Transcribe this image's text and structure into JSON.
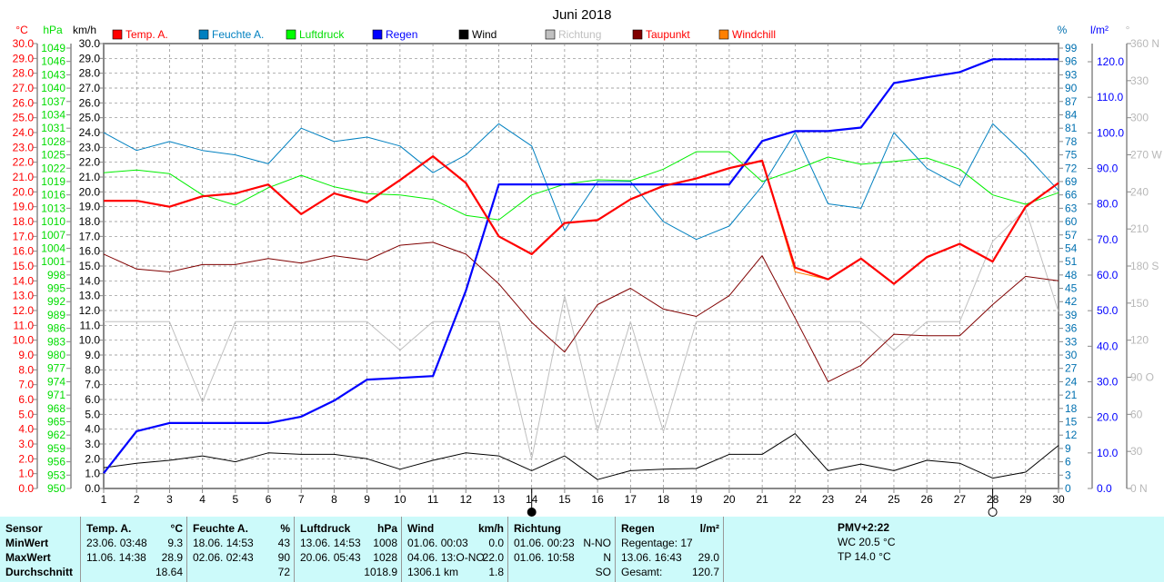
{
  "chart_data": {
    "type": "line",
    "title": "Juni 2018",
    "x": [
      1,
      2,
      3,
      4,
      5,
      6,
      7,
      8,
      9,
      10,
      11,
      12,
      13,
      14,
      15,
      16,
      17,
      18,
      19,
      20,
      21,
      22,
      23,
      24,
      25,
      26,
      27,
      28,
      29,
      30
    ],
    "axes": {
      "temp": {
        "unit": "°C",
        "min": 0,
        "max": 30,
        "step": 1,
        "color": "#ff0000"
      },
      "pressure": {
        "unit": "hPa",
        "min": 950,
        "max": 1049,
        "step": 3,
        "color": "#00ee00"
      },
      "wind": {
        "unit": "km/h",
        "min": 0,
        "max": 30,
        "step": 1,
        "color": "#000000"
      },
      "humidity": {
        "unit": "%",
        "min": 0,
        "max": 99,
        "step": 3,
        "color": "#0070b0"
      },
      "rain": {
        "unit": "l/m²",
        "min": 0,
        "max": 120,
        "step": 10,
        "color": "#0000ff"
      },
      "direction": {
        "unit": "°",
        "min": 0,
        "max": 360,
        "step": 30,
        "color": "#b0b0b0",
        "labels": {
          "0": "0 N",
          "90": "90 O",
          "180": "180 S",
          "270": "270 W",
          "360": "360 N"
        }
      }
    },
    "grid": true,
    "legend_position": "top",
    "series": [
      {
        "name": "Temp. A.",
        "axis": "temp",
        "color": "#ff0000",
        "width": 2.2,
        "values": [
          19.4,
          19.4,
          19.0,
          19.7,
          19.9,
          20.5,
          18.5,
          19.9,
          19.3,
          20.8,
          22.4,
          20.6,
          17.0,
          15.8,
          17.9,
          18.1,
          19.5,
          20.4,
          20.9,
          21.6,
          22.1,
          14.9,
          14.1,
          15.5,
          13.8,
          15.6,
          16.5,
          15.3,
          19.0,
          20.6
        ]
      },
      {
        "name": "Feuchte A.",
        "axis": "humidity",
        "color": "#0080c0",
        "width": 1,
        "values": [
          80,
          76,
          78,
          76,
          75,
          73,
          81,
          78,
          79,
          77,
          71,
          75,
          82,
          77,
          58,
          69,
          69,
          60,
          56,
          59,
          68,
          80,
          64,
          63,
          80,
          72,
          68,
          82,
          75,
          67
        ]
      },
      {
        "name": "Luftdruck",
        "axis": "pressure",
        "color": "#00ee00",
        "width": 1,
        "values": [
          1021.0,
          1021.6,
          1020.8,
          1016.0,
          1013.7,
          1017.6,
          1020.4,
          1017.8,
          1016.3,
          1016.0,
          1015.0,
          1011.4,
          1010.4,
          1016.0,
          1018.4,
          1019.4,
          1019.2,
          1021.8,
          1025.7,
          1025.7,
          1019.0,
          1021.6,
          1024.5,
          1022.9,
          1023.5,
          1024.3,
          1021.8,
          1016.0,
          1013.9,
          1016.5
        ]
      },
      {
        "name": "Regen",
        "axis": "rain",
        "color": "#0000ff",
        "width": 2.2,
        "values": [
          4.3,
          16.1,
          18.4,
          18.4,
          18.4,
          18.4,
          20.2,
          24.7,
          30.6,
          31.1,
          31.6,
          55.6,
          85.5,
          85.5,
          85.5,
          85.5,
          85.5,
          85.5,
          85.5,
          85.5,
          97.7,
          100.5,
          100.5,
          101.5,
          114.0,
          115.6,
          117.1,
          120.7,
          120.7,
          120.7
        ]
      },
      {
        "name": "Wind",
        "axis": "wind",
        "color": "#000000",
        "width": 1,
        "values": [
          1.4,
          1.7,
          1.9,
          2.2,
          1.8,
          2.4,
          2.3,
          2.3,
          2.0,
          1.3,
          1.9,
          2.4,
          2.2,
          1.2,
          2.2,
          0.6,
          1.2,
          1.3,
          1.35,
          2.3,
          2.3,
          3.7,
          1.2,
          1.65,
          1.2,
          1.9,
          1.7,
          0.7,
          1.1,
          2.9
        ]
      },
      {
        "name": "Richtung",
        "axis": "direction",
        "color": "#c0c0c0",
        "width": 1,
        "values": [
          135,
          135,
          135,
          70,
          135,
          135,
          135,
          135,
          135,
          112,
          135,
          135,
          135,
          24,
          156,
          46,
          135,
          46,
          135,
          135,
          135,
          135,
          135,
          135,
          112,
          135,
          135,
          200,
          226,
          143
        ]
      },
      {
        "name": "Taupunkt",
        "axis": "temp",
        "color": "#800000",
        "width": 1,
        "values": [
          15.8,
          14.8,
          14.6,
          15.1,
          15.1,
          15.5,
          15.2,
          15.7,
          15.4,
          16.4,
          16.6,
          15.8,
          13.8,
          11.2,
          9.2,
          12.4,
          13.5,
          12.1,
          11.6,
          13.0,
          15.7,
          11.5,
          7.2,
          8.3,
          10.4,
          10.3,
          10.3,
          12.4,
          14.3,
          14.0
        ]
      },
      {
        "name": "Windchill",
        "axis": "temp",
        "color": "#ff8000",
        "width": 1,
        "values": [
          19.4,
          19.4,
          19.0,
          19.7,
          19.9,
          20.5,
          18.5,
          19.9,
          19.3,
          20.8,
          22.4,
          20.6,
          17.0,
          15.8,
          17.9,
          18.1,
          19.5,
          20.4,
          20.9,
          21.6,
          22.1,
          14.6,
          14.1,
          15.5,
          13.8,
          15.6,
          16.5,
          15.3,
          19.0,
          20.6
        ]
      }
    ],
    "moon_markers": [
      {
        "day": 14,
        "symbol": "full-moon"
      },
      {
        "day": 28,
        "symbol": "new-moon"
      }
    ]
  },
  "legend": [
    {
      "label": "Temp. A.",
      "color": "#ff0000",
      "text_color": "#ff0000"
    },
    {
      "label": "Feuchte A.",
      "color": "#0080c0",
      "text_color": "#0080c0"
    },
    {
      "label": "Luftdruck",
      "color": "#00ff00",
      "text_color": "#00dd00"
    },
    {
      "label": "Regen",
      "color": "#0000ff",
      "text_color": "#0000ff"
    },
    {
      "label": "Wind",
      "color": "#000000",
      "text_color": "#000000"
    },
    {
      "label": "Richtung",
      "color": "#c0c0c0",
      "text_color": "#c0c0c0"
    },
    {
      "label": "Taupunkt",
      "color": "#800000",
      "text_color": "#ff0000"
    },
    {
      "label": "Windchill",
      "color": "#ff8000",
      "text_color": "#ff0000"
    }
  ],
  "table": {
    "sensor": {
      "header": "Sensor",
      "min": "MinWert",
      "max": "MaxWert",
      "avg": "Durchschnitt"
    },
    "temp": {
      "header": "Temp. A.",
      "unit": "°C",
      "min_time": "23.06.  03:48",
      "min": "9.3",
      "max_time": "11.06.  14:38",
      "max": "28.9",
      "avg": "18.64"
    },
    "humidity": {
      "header": "Feuchte A.",
      "unit": "%",
      "min_time": "18.06.  14:53",
      "min": "43",
      "max_time": "02.06.  02:43",
      "max": "90",
      "avg": "72"
    },
    "pressure": {
      "header": "Luftdruck",
      "unit": "hPa",
      "min_time": "13.06.  14:53",
      "min": "1008",
      "max_time": "20.06.  05:43",
      "max": "1028",
      "avg": "1018.9"
    },
    "wind": {
      "header": "Wind",
      "unit": "km/h",
      "min_time": "01.06.  00:03",
      "min": "0.0",
      "max_time": "04.06.  13:O-NO",
      "max": "22.0",
      "distance": "1306.1 km",
      "avg": "1.8"
    },
    "direction": {
      "header": "Richtung",
      "min_time": "01.06.  00:23",
      "min": "N-NO",
      "max_time": "01.06.  10:58",
      "max": "N",
      "avg": "SO"
    },
    "rain": {
      "header": "Regen",
      "unit": "l/m²",
      "days": "Regentage: 17",
      "max_time": "13.06.  16:43",
      "max": "29.0",
      "total_label": "Gesamt:",
      "total": "120.7"
    },
    "extra": {
      "pmv": "PMV+2:22",
      "wc": "WC 20.5 °C",
      "tp": "TP 14.0 °C"
    }
  }
}
